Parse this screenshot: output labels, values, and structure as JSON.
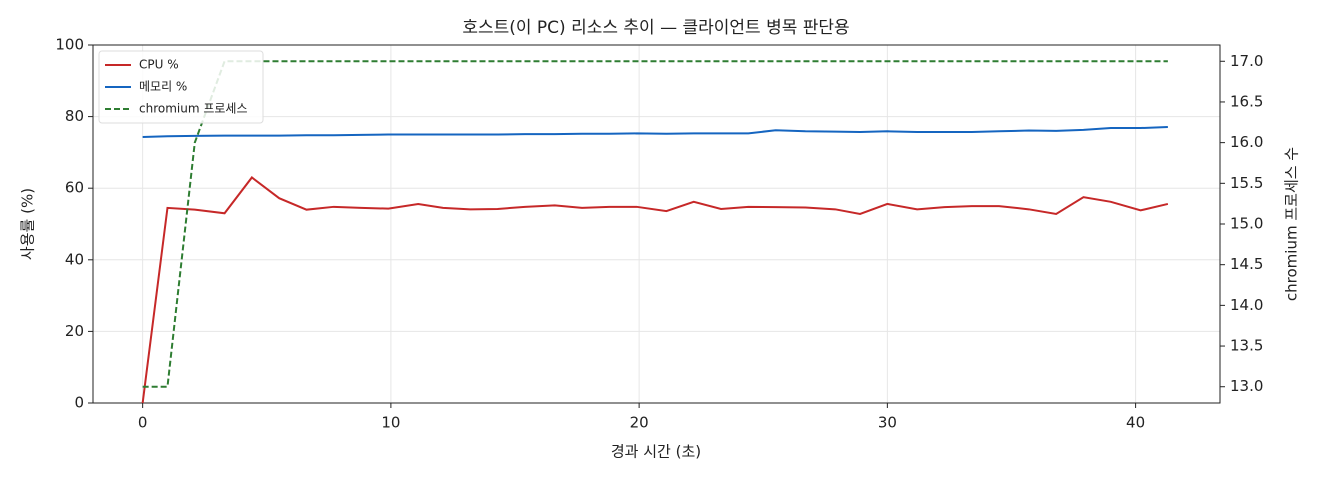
{
  "chart_data": {
    "type": "line",
    "title": "호스트(이 PC) 리소스 추이 — 클라이언트 병목 판단용",
    "xlabel": "경과 시간 (초)",
    "ylabel": "사용률 (%)",
    "y2label": "chromium 프로세스 수",
    "x": [
      0,
      1.0,
      2.1,
      3.3,
      4.4,
      5.5,
      6.6,
      7.7,
      8.8,
      9.9,
      11.1,
      12.1,
      13.2,
      14.3,
      15.4,
      16.6,
      17.7,
      18.8,
      19.9,
      21.1,
      22.2,
      23.3,
      24.4,
      25.5,
      26.7,
      27.9,
      28.9,
      30.0,
      31.2,
      32.3,
      33.4,
      34.5,
      35.7,
      36.8,
      37.9,
      39.0,
      40.2,
      41.3
    ],
    "series": [
      {
        "name": "CPU %",
        "color": "#c62828",
        "linestyle": "solid",
        "axis": "y",
        "values": [
          0,
          54.5,
          54,
          53,
          63,
          57.2,
          54,
          54.8,
          54.5,
          54.3,
          55.6,
          54.5,
          54.1,
          54.2,
          54.8,
          55.2,
          54.5,
          54.8,
          54.8,
          53.6,
          56.2,
          54.2,
          54.8,
          54.7,
          54.6,
          54.1,
          52.8,
          55.6,
          54.1,
          54.7,
          55,
          55,
          54.1,
          52.8,
          57.5,
          56.2,
          53.8,
          55.6
        ]
      },
      {
        "name": "메모리 %",
        "color": "#1565c0",
        "linestyle": "solid",
        "axis": "y",
        "values": [
          74.3,
          74.5,
          74.6,
          74.7,
          74.7,
          74.7,
          74.8,
          74.8,
          74.9,
          75,
          75,
          75,
          75,
          75,
          75.1,
          75.1,
          75.2,
          75.2,
          75.3,
          75.2,
          75.3,
          75.3,
          75.3,
          76.2,
          75.9,
          75.8,
          75.7,
          75.9,
          75.7,
          75.7,
          75.7,
          75.9,
          76.1,
          76,
          76.3,
          76.8,
          76.8,
          77.1
        ]
      },
      {
        "name": "chromium 프로세스",
        "color": "#2e7d32",
        "linestyle": "dashed",
        "axis": "y2",
        "values": [
          13,
          13,
          16,
          17,
          17,
          17,
          17,
          17,
          17,
          17,
          17,
          17,
          17,
          17,
          17,
          17,
          17,
          17,
          17,
          17,
          17,
          17,
          17,
          17,
          17,
          17,
          17,
          17,
          17,
          17,
          17,
          17,
          17,
          17,
          17,
          17,
          17,
          17
        ]
      }
    ],
    "xlim": [
      -2,
      43.4
    ],
    "xticks": [
      0,
      10,
      20,
      30,
      40
    ],
    "ylim": [
      0,
      100
    ],
    "yticks": [
      0,
      20,
      40,
      60,
      80,
      100
    ],
    "y2lim": [
      12.8,
      17.2
    ],
    "y2ticks": [
      {
        "value": 13,
        "label": "13.0"
      },
      {
        "value": 13.5,
        "label": "13.5"
      },
      {
        "value": 14,
        "label": "14.0"
      },
      {
        "value": 14.5,
        "label": "14.5"
      },
      {
        "value": 15,
        "label": "15.0"
      },
      {
        "value": 15.5,
        "label": "15.5"
      },
      {
        "value": 16,
        "label": "16.0"
      },
      {
        "value": 16.5,
        "label": "16.5"
      },
      {
        "value": 17,
        "label": "17.0"
      }
    ],
    "grid": true,
    "legend": "upper-left"
  }
}
